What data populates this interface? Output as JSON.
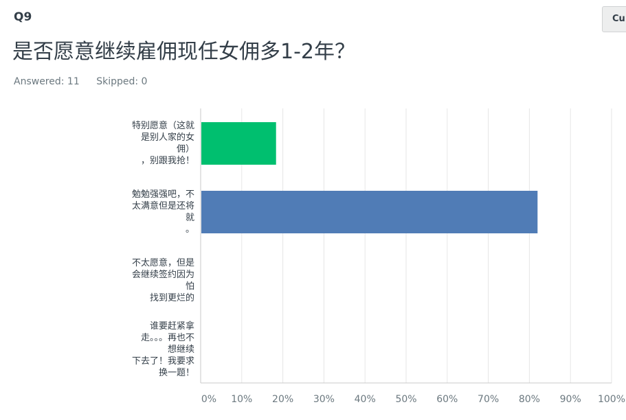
{
  "question": {
    "number": "Q9",
    "title": "是否愿意继续雇佣现任女佣多1-2年？",
    "answered": "Answered: 11",
    "skipped": "Skipped: 0"
  },
  "toolbar": {
    "customize_label": "Cu"
  },
  "colors": {
    "green": "#00bf6f",
    "blue": "#507cb6",
    "grid": "#e6e6e6",
    "axis": "#c9c9c9"
  },
  "chart_data": {
    "type": "bar",
    "orientation": "horizontal",
    "categories": [
      [
        "特别愿意（这就",
        "是别人家的女",
        "佣）",
        "，别跟我抢！"
      ],
      [
        "勉勉强强吧，不",
        "太满意但是还将",
        "就",
        "。"
      ],
      [
        "不太愿意，但是",
        "会继续签约因为",
        "怕",
        "找到更烂的"
      ],
      [
        "谁要赶紧拿",
        "走。。。再也不",
        "想继续",
        "下去了！我要求",
        "换一题！"
      ]
    ],
    "values": [
      18.18,
      81.82,
      0,
      0
    ],
    "bar_colors": [
      "#00bf6f",
      "#507cb6",
      "#507cb6",
      "#507cb6"
    ],
    "xlim": [
      0,
      100
    ],
    "x_ticks": [
      "0%",
      "10%",
      "20%",
      "30%",
      "40%",
      "50%",
      "60%",
      "70%",
      "80%",
      "90%",
      "100%"
    ],
    "grid": true
  }
}
